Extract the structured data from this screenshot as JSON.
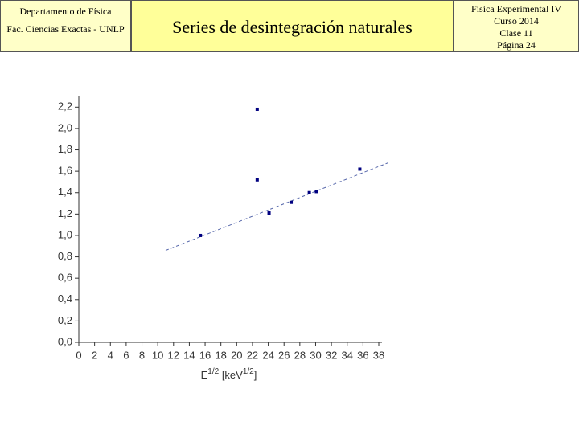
{
  "header": {
    "left": [
      "Departamento de Física",
      "Fac. Ciencias Exactas - UNLP"
    ],
    "title": "Series de desintegración naturales",
    "right": [
      "Física Experimental IV",
      "Curso 2014",
      "Clase 11",
      "Página 24"
    ]
  },
  "chart_data": {
    "type": "scatter",
    "xlabel": [
      "E",
      "1/2",
      " [keV",
      "1/2",
      "]"
    ],
    "x": [
      15.4,
      22.6,
      22.6,
      24.1,
      26.9,
      29.2,
      30.1,
      35.6
    ],
    "values": [
      1.0,
      2.18,
      1.52,
      1.21,
      1.31,
      1.4,
      1.41,
      1.62
    ],
    "color": "#000080",
    "fit_line": {
      "x": [
        11.0,
        39.2
      ],
      "y": [
        0.86,
        1.68
      ],
      "color": "#5566aa"
    },
    "xlim": [
      0,
      38
    ],
    "ylim": [
      0,
      2.3
    ],
    "xticks": [
      0,
      2,
      4,
      6,
      8,
      10,
      12,
      14,
      16,
      18,
      20,
      22,
      24,
      26,
      28,
      30,
      32,
      34,
      36,
      38
    ],
    "yticks": [
      {
        "value": 0,
        "label": "0,0"
      },
      {
        "value": 0.2,
        "label": "0,2"
      },
      {
        "value": 0.4,
        "label": "0,4"
      },
      {
        "value": 0.6,
        "label": "0,6"
      },
      {
        "value": 0.8,
        "label": "0,8"
      },
      {
        "value": 1.0,
        "label": "1,0"
      },
      {
        "value": 1.2,
        "label": "1,2"
      },
      {
        "value": 1.4,
        "label": "1,4"
      },
      {
        "value": 1.6,
        "label": "1,6"
      },
      {
        "value": 1.8,
        "label": "1,8"
      },
      {
        "value": 2.0,
        "label": "2,0"
      },
      {
        "value": 2.2,
        "label": "2,2"
      }
    ]
  }
}
